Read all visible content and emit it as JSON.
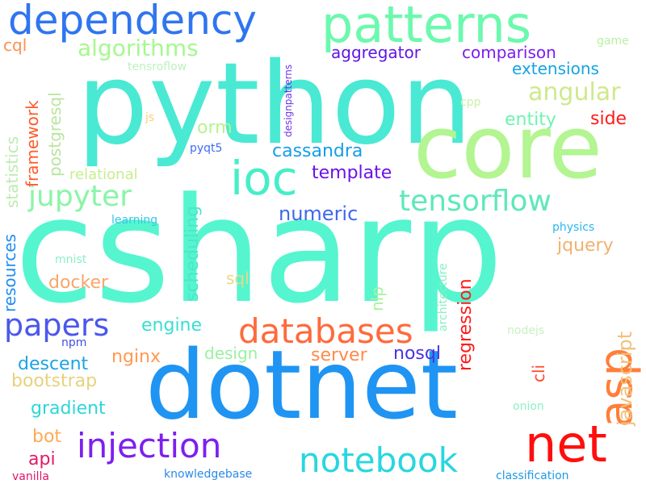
{
  "words": [
    {
      "text": "csharp",
      "color": "#55f5cf"
    },
    {
      "text": "python",
      "color": "#4ae9d3"
    },
    {
      "text": "dotnet",
      "color": "#1f94f2"
    },
    {
      "text": "core",
      "color": "#b2f591"
    },
    {
      "text": "patterns",
      "color": "#6bf9ae"
    },
    {
      "text": "dependency",
      "color": "#2f75ef"
    },
    {
      "text": "net",
      "color": "#ff0e0e"
    },
    {
      "text": "asp",
      "color": "#ff7e3a"
    },
    {
      "text": "databases",
      "color": "#ff6a3c"
    },
    {
      "text": "injection",
      "color": "#7d1ff0"
    },
    {
      "text": "notebook",
      "color": "#28d6e0"
    },
    {
      "text": "tensorflow",
      "color": "#5de9b9"
    },
    {
      "text": "jupyter",
      "color": "#8af5a6"
    },
    {
      "text": "ioc",
      "color": "#46eec7"
    },
    {
      "text": "papers",
      "color": "#4a57ec"
    },
    {
      "text": "algorithms",
      "color": "#a6f88f"
    },
    {
      "text": "angular",
      "color": "#cfe98d"
    },
    {
      "text": "numeric",
      "color": "#3f68ee"
    },
    {
      "text": "javascript",
      "color": "#f1c27a"
    },
    {
      "text": "template",
      "color": "#6a12e9"
    },
    {
      "text": "cassandra",
      "color": "#169ee8"
    },
    {
      "text": "extensions",
      "color": "#15a4e2"
    },
    {
      "text": "comparison",
      "color": "#7d1bf0"
    },
    {
      "text": "aggregator",
      "color": "#5f16e6"
    },
    {
      "text": "entity",
      "color": "#6ef3b1"
    },
    {
      "text": "side",
      "color": "#ff1a1a"
    },
    {
      "text": "orm",
      "color": "#b4f48e"
    },
    {
      "text": "relational",
      "color": "#c8ed8e"
    },
    {
      "text": "jquery",
      "color": "#f1b16d"
    },
    {
      "text": "docker",
      "color": "#f9a56a"
    },
    {
      "text": "engine",
      "color": "#39dfd0"
    },
    {
      "text": "design",
      "color": "#9cf0a0"
    },
    {
      "text": "server",
      "color": "#ff8a4a"
    },
    {
      "text": "nosql",
      "color": "#4a33e0"
    },
    {
      "text": "descent",
      "color": "#1da3e3"
    },
    {
      "text": "nginx",
      "color": "#ff9a52"
    },
    {
      "text": "bootstrap",
      "color": "#e6d27d"
    },
    {
      "text": "gradient",
      "color": "#2dd6d9"
    },
    {
      "text": "bot",
      "color": "#ffaa55"
    },
    {
      "text": "api",
      "color": "#e01a6a"
    },
    {
      "text": "cql",
      "color": "#ff8f52"
    },
    {
      "text": "statistics",
      "color": "#bdebb1"
    },
    {
      "text": "framework",
      "color": "#ff5a2a"
    },
    {
      "text": "postgresql",
      "color": "#b9e59f"
    },
    {
      "text": "resources",
      "color": "#1f8ef0"
    },
    {
      "text": "scheduling",
      "color": "#4de6c8"
    },
    {
      "text": "regression",
      "color": "#ff1a1a"
    },
    {
      "text": "cli",
      "color": "#ff4a2a"
    },
    {
      "text": "nlp",
      "color": "#a8f39a"
    },
    {
      "text": "architecture",
      "color": "#88f0c0"
    },
    {
      "text": "designpatterns",
      "color": "#6b33ee"
    },
    {
      "text": "sql",
      "color": "#e6d98a"
    },
    {
      "text": "tensroflow",
      "color": "#bdf0c2"
    },
    {
      "text": "game",
      "color": "#b9f0a0"
    },
    {
      "text": "cpp",
      "color": "#c9f0a8"
    },
    {
      "text": "js",
      "color": "#ffcc7a"
    },
    {
      "text": "pyqt5",
      "color": "#3f6ef0"
    },
    {
      "text": "learning",
      "color": "#38c6e6"
    },
    {
      "text": "physics",
      "color": "#2ab6ee"
    },
    {
      "text": "mnist",
      "color": "#8ef0c6"
    },
    {
      "text": "npm",
      "color": "#3f4fe6"
    },
    {
      "text": "nodejs",
      "color": "#c8f2c0"
    },
    {
      "text": "onion",
      "color": "#8ef0c6"
    },
    {
      "text": "vanilla",
      "color": "#e0146a"
    },
    {
      "text": "knowledgebase",
      "color": "#2a8ae6"
    },
    {
      "text": "classification",
      "color": "#1f9ae6"
    }
  ]
}
